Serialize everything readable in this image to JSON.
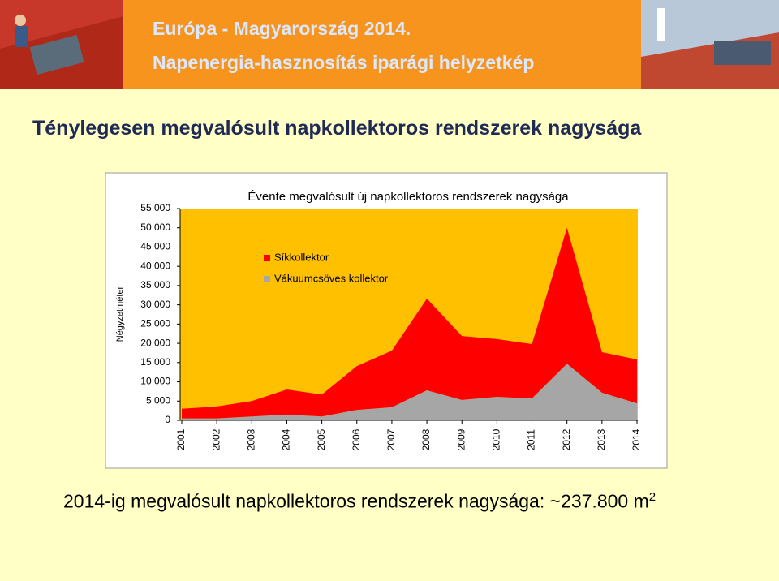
{
  "header": {
    "title": "Európa - Magyarország 2014.",
    "subtitle": "Napenergia-hasznosítás iparági helyzetkép"
  },
  "heading": "Ténylegesen megvalósult napkollektoros rendszerek nagysága",
  "chart_data": {
    "type": "area",
    "stacked": true,
    "title": "Évente megvalósult új napkollektoros rendszerek nagysága",
    "y_label": "Négyzetméter",
    "categories": [
      "2001",
      "2002",
      "2003",
      "2004",
      "2005",
      "2006",
      "2007",
      "2008",
      "2009",
      "2010",
      "2011",
      "2012",
      "2013",
      "2014"
    ],
    "series": [
      {
        "name": "Vákuumcsöves kollektor",
        "color": "#a6a6a6",
        "values": [
          500,
          500,
          1000,
          1500,
          1000,
          2700,
          3400,
          7800,
          5300,
          6100,
          5700,
          14700,
          7200,
          4400
        ]
      },
      {
        "name": "Síkkollektor",
        "color": "#ff0000",
        "values": [
          2500,
          3100,
          4000,
          6500,
          5700,
          11400,
          14700,
          23800,
          16600,
          15000,
          14100,
          35300,
          10500,
          11400
        ]
      }
    ],
    "ylim": [
      0,
      55000
    ],
    "yticks": [
      0,
      {
        "value": 5000,
        "label": "5 000"
      },
      {
        "value": 10000,
        "label": "10 000"
      },
      {
        "value": 15000,
        "label": "15 000"
      },
      {
        "value": 20000,
        "label": "20 000"
      },
      {
        "value": 25000,
        "label": "25 000"
      },
      {
        "value": 30000,
        "label": "30 000"
      },
      {
        "value": 35000,
        "label": "35 000"
      },
      {
        "value": 40000,
        "label": "40 000"
      },
      {
        "value": 45000,
        "label": "45 000"
      },
      {
        "value": 50000,
        "label": "50 000"
      },
      {
        "value": 55000,
        "label": "55 000"
      }
    ],
    "plot_background": "#ffc000"
  },
  "footer": {
    "text": "2014-ig megvalósult napkollektoros rendszerek nagysága: ~237.800 m",
    "sup": "2"
  }
}
